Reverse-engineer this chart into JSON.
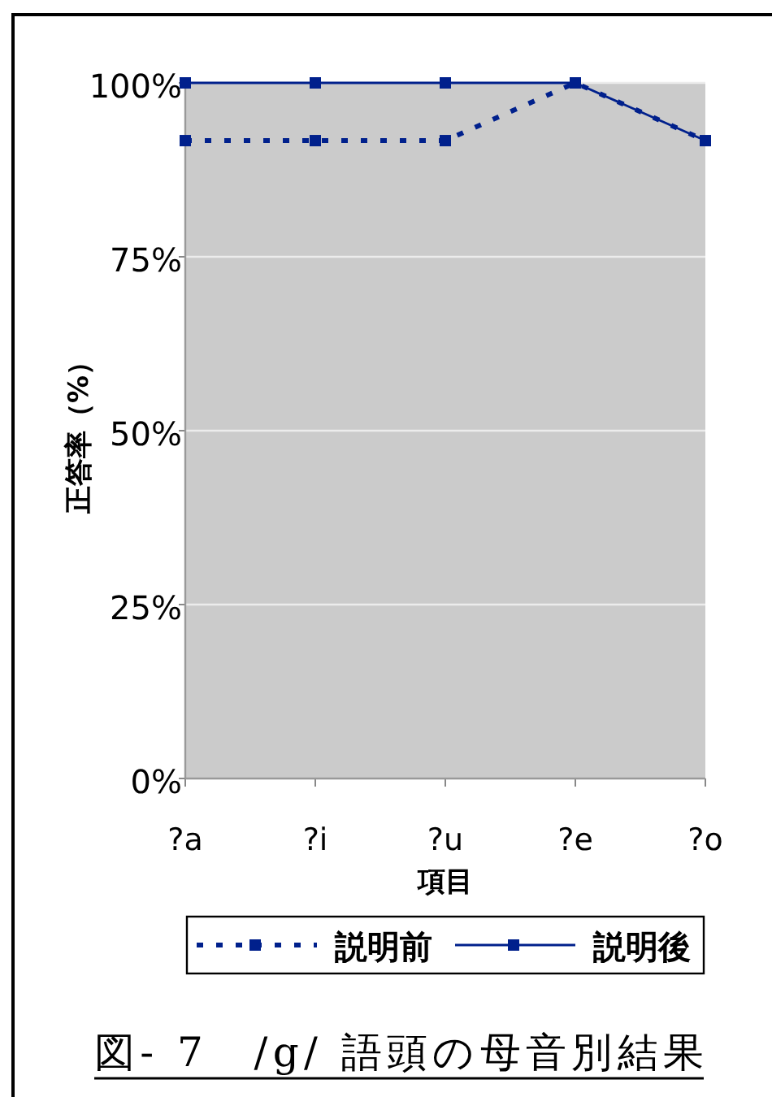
{
  "chart_data": {
    "type": "line",
    "title": "図- 7　/g/ 語頭の母音別結果",
    "xlabel": "項目",
    "ylabel": "正答率（%）",
    "categories": [
      "?a",
      "?i",
      "?u",
      "?e",
      "?o"
    ],
    "series": [
      {
        "name": "説明前",
        "color": "#00208c",
        "line_style": "dotted",
        "values": [
          91.7,
          91.7,
          91.7,
          100,
          91.7
        ]
      },
      {
        "name": "説明後",
        "color": "#00208c",
        "line_style": "solid",
        "values": [
          100,
          100,
          100,
          100,
          91.7
        ]
      }
    ],
    "ylim": [
      0,
      100
    ],
    "yticks": [
      {
        "value": 0,
        "label": "0%"
      },
      {
        "value": 25,
        "label": "25%"
      },
      {
        "value": 50,
        "label": "50%"
      },
      {
        "value": 75,
        "label": "75%"
      },
      {
        "value": 100,
        "label": "100%"
      }
    ],
    "grid": "y",
    "legend": "bottom",
    "marker": "square"
  }
}
